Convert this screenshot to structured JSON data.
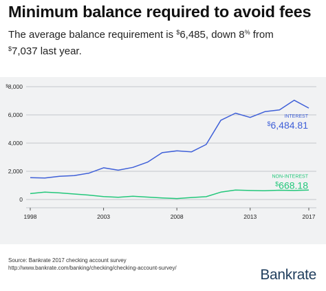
{
  "header": {
    "title": "Minimum balance required to avoid fees",
    "subtitle_a": "The average balance requirement is ",
    "subtitle_cur1": "$",
    "subtitle_val1": "6,485, down 8",
    "subtitle_pct": "%",
    "subtitle_b": " from",
    "subtitle_cur2": "$",
    "subtitle_val2": "7,037 last year."
  },
  "chart_data": {
    "type": "line",
    "x": [
      1998,
      1999,
      2000,
      2001,
      2002,
      2003,
      2004,
      2005,
      2006,
      2007,
      2008,
      2009,
      2010,
      2011,
      2012,
      2013,
      2014,
      2015,
      2016,
      2017
    ],
    "series": [
      {
        "name": "INTEREST",
        "color": "#3e5fd8",
        "values": [
          1550,
          1520,
          1650,
          1700,
          1870,
          2250,
          2080,
          2280,
          2650,
          3320,
          3450,
          3380,
          3900,
          5620,
          6120,
          5820,
          6230,
          6350,
          7037,
          6484.81
        ]
      },
      {
        "name": "NON-INTEREST",
        "color": "#22c77a",
        "values": [
          420,
          520,
          470,
          390,
          310,
          210,
          160,
          230,
          170,
          110,
          70,
          140,
          200,
          520,
          670,
          640,
          620,
          660,
          640,
          668.18
        ]
      }
    ],
    "end_labels": [
      {
        "series": "INTEREST",
        "label": "INTEREST",
        "currency": "$",
        "amount": "6,484.81"
      },
      {
        "series": "NON-INTEREST",
        "label": "NON-INTEREST",
        "currency": "$",
        "amount": "668.18"
      }
    ],
    "xticks": [
      1998,
      2003,
      2008,
      2013,
      2017
    ],
    "yticks": [
      0,
      2000,
      4000,
      6000,
      8000
    ],
    "ytick_labels": [
      "0",
      "2,000",
      "4,000",
      "6,000",
      "8,000"
    ],
    "ytick_top_prefix": "$",
    "ylim": [
      0,
      8000
    ],
    "xlim": [
      1998,
      2017
    ],
    "grid": "horizontal"
  },
  "footer": {
    "source_line1": "Source: Bankrate 2017 checking account survey",
    "source_line2": "http://www.bankrate.com/banking/checking/checking-account-survey/",
    "logo": "Bankrate",
    "logo_color": "#1f3d5c"
  }
}
